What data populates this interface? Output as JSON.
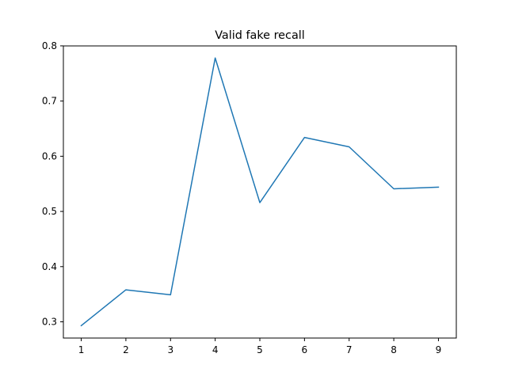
{
  "chart_data": {
    "type": "line",
    "title": "Valid fake recall",
    "xlabel": "",
    "ylabel": "",
    "x": [
      1,
      2,
      3,
      4,
      5,
      6,
      7,
      8,
      9
    ],
    "series": [
      {
        "values": [
          0.293,
          0.358,
          0.349,
          0.778,
          0.516,
          0.634,
          0.617,
          0.541,
          0.544
        ],
        "color": "#1f77b4"
      }
    ],
    "xlim": [
      0.6,
      9.4
    ],
    "ylim": [
      0.2706,
      0.7999
    ],
    "xticks": [
      1,
      2,
      3,
      4,
      5,
      6,
      7,
      8,
      9
    ],
    "yticks": [
      0.3,
      0.4,
      0.5,
      0.6,
      0.7,
      0.8
    ],
    "grid": false,
    "legend": "none"
  }
}
